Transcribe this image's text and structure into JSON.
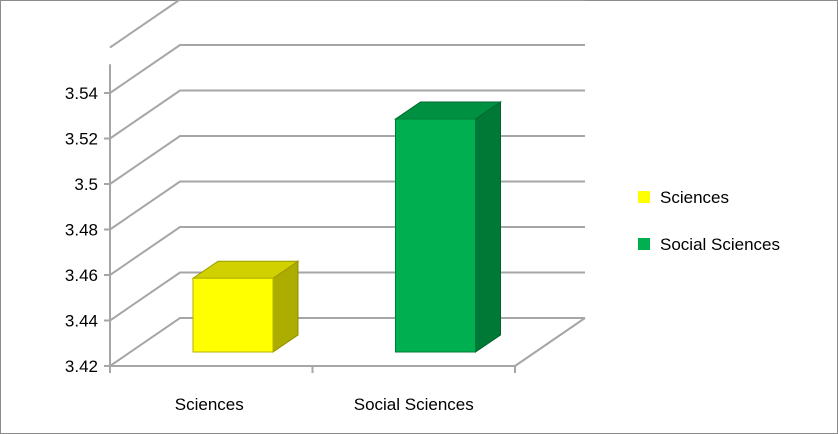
{
  "chart_data": {
    "type": "bar",
    "three_d": true,
    "categories": [
      "Sciences",
      "Social Sciences"
    ],
    "values": [
      3.47,
      3.54
    ],
    "series": [
      {
        "name": "Sciences",
        "values": [
          3.47,
          null
        ]
      },
      {
        "name": "Social Sciences",
        "values": [
          null,
          3.54
        ]
      }
    ],
    "ylim": [
      3.42,
      3.56
    ],
    "yticks": [
      "3.42",
      "3.44",
      "3.46",
      "3.48",
      "3.5",
      "3.52",
      "3.54"
    ],
    "grid": true,
    "legend_position": "right",
    "colors": {
      "Sciences": "#ffff00",
      "Social Sciences": "#00b050",
      "gridline": "#a6a6a6"
    }
  }
}
